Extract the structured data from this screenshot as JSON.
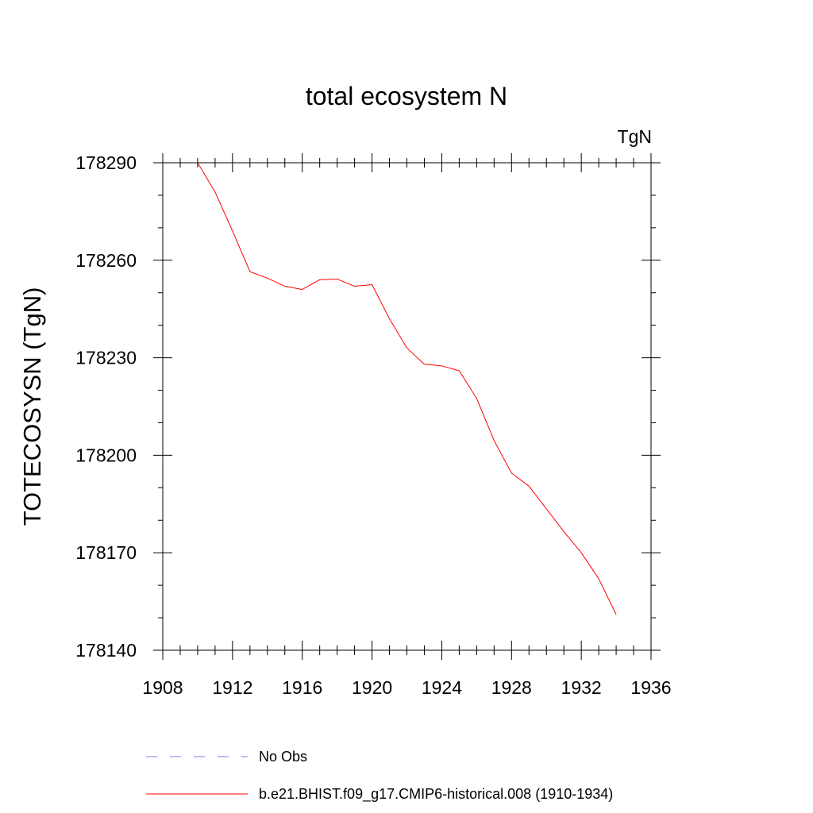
{
  "chart_data": {
    "type": "line",
    "title": "total ecosystem N",
    "units": "TgN",
    "xlabel": "",
    "ylabel": "TOTECOSYSN  (TgN)",
    "xlim": [
      1908,
      1936
    ],
    "ylim": [
      178140,
      178290
    ],
    "xticks": [
      1908,
      1912,
      1916,
      1920,
      1924,
      1928,
      1932,
      1936
    ],
    "yticks": [
      178140,
      178170,
      178200,
      178230,
      178260,
      178290
    ],
    "x_minor_step": 1,
    "y_minor_step": 10,
    "grid": false,
    "legend_position": "bottom",
    "series": [
      {
        "name": "b.e21.BHIST.f09_g17.CMIP6-historical.008 (1910-1934)",
        "color": "#ff0000",
        "style": "solid",
        "x": [
          1910,
          1911,
          1912,
          1913,
          1914,
          1915,
          1916,
          1917,
          1918,
          1919,
          1920,
          1921,
          1922,
          1923,
          1924,
          1925,
          1926,
          1927,
          1928,
          1929,
          1930,
          1931,
          1932,
          1933,
          1934
        ],
        "values": [
          178290,
          178281,
          178269,
          178256.5,
          178254.5,
          178252,
          178251,
          178254,
          178254.2,
          178252,
          178252.5,
          178242,
          178233,
          178228,
          178227.5,
          178226,
          178217.5,
          178204.5,
          178194.5,
          178190.5,
          178183.5,
          178176.5,
          178170,
          178162,
          178151
        ]
      }
    ],
    "legend": [
      {
        "label": "No Obs",
        "color": "#7b7bd9",
        "style": "dashed"
      },
      {
        "label": "b.e21.BHIST.f09_g17.CMIP6-historical.008 (1910-1934)",
        "color": "#ff0000",
        "style": "solid"
      }
    ]
  }
}
